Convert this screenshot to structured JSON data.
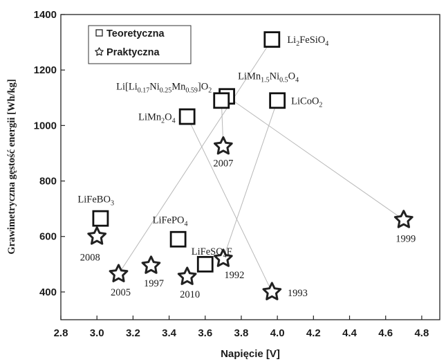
{
  "chart_data": {
    "type": "scatter",
    "xlabel": "Napięcie [V]",
    "ylabel": "Grawimetryczna gęstość energii [Wh/kg]",
    "xlim": [
      2.8,
      4.9
    ],
    "ylim": [
      300,
      1400
    ],
    "xticks": [
      "2.8",
      "3.0",
      "3.2",
      "3.4",
      "3.6",
      "3.8",
      "4.0",
      "4.2",
      "4.4",
      "4.6",
      "4.8"
    ],
    "yticks": [
      "400",
      "600",
      "800",
      "1000",
      "1200",
      "1400"
    ],
    "legend": {
      "position": "top-left",
      "entries": [
        "Teoretyczna",
        "Praktyczna"
      ]
    },
    "series": [
      {
        "name": "Teoretyczna",
        "marker": "square",
        "points": [
          {
            "x": 3.97,
            "y": 1310,
            "label": {
              "base": "Li",
              "parts": [
                [
                  "2",
                  "sub"
                ],
                [
                  "FeSiO",
                  ""
                ],
                [
                  "4",
                  "sub"
                ]
              ]
            }
          },
          {
            "x": 3.72,
            "y": 1105,
            "label": {
              "base": "LiMn",
              "parts": [
                [
                  "1.5",
                  "sub"
                ],
                [
                  "Ni",
                  ""
                ],
                [
                  "0.5",
                  "sub"
                ],
                [
                  "O",
                  ""
                ],
                [
                  "4",
                  "sub"
                ]
              ]
            }
          },
          {
            "x": 3.69,
            "y": 1090,
            "label": {
              "base": "Li[Li",
              "parts": [
                [
                  "0.17",
                  "sub"
                ],
                [
                  "Ni",
                  ""
                ],
                [
                  "0.25",
                  "sub"
                ],
                [
                  "Mn",
                  ""
                ],
                [
                  "0.59",
                  "sub"
                ],
                [
                  "]O",
                  ""
                ],
                [
                  "2",
                  "sub"
                ]
              ]
            }
          },
          {
            "x": 4.0,
            "y": 1090,
            "label": {
              "base": "LiCoO",
              "parts": [
                [
                  "2",
                  "sub"
                ]
              ]
            }
          },
          {
            "x": 3.5,
            "y": 1032,
            "label": {
              "base": "LiMn",
              "parts": [
                [
                  "2",
                  "sub"
                ],
                [
                  "O",
                  ""
                ],
                [
                  "4",
                  "sub"
                ]
              ]
            }
          },
          {
            "x": 3.02,
            "y": 665,
            "label": {
              "base": "LiFeBO",
              "parts": [
                [
                  "3",
                  "sub"
                ]
              ]
            }
          },
          {
            "x": 3.45,
            "y": 590,
            "label": {
              "base": "LiFePO",
              "parts": [
                [
                  "4",
                  "sub"
                ]
              ]
            }
          },
          {
            "x": 3.6,
            "y": 500,
            "label": {
              "base": "LiFeSO",
              "parts": [
                [
                  "4",
                  "sub"
                ],
                [
                  "F",
                  ""
                ]
              ]
            }
          }
        ]
      },
      {
        "name": "Praktyczna",
        "marker": "star",
        "points": [
          {
            "x": 3.7,
            "y": 925,
            "label": "2007"
          },
          {
            "x": 4.7,
            "y": 660,
            "label": "1999"
          },
          {
            "x": 3.0,
            "y": 600,
            "label": "2008"
          },
          {
            "x": 3.12,
            "y": 465,
            "label": "2005"
          },
          {
            "x": 3.3,
            "y": 495,
            "label": "1997"
          },
          {
            "x": 3.5,
            "y": 455,
            "label": "2010"
          },
          {
            "x": 3.7,
            "y": 520,
            "label": "1992"
          },
          {
            "x": 3.97,
            "y": 400,
            "label": "1993"
          }
        ]
      }
    ],
    "connections": [
      {
        "from": [
          3.97,
          1310
        ],
        "to": [
          3.12,
          465
        ]
      },
      {
        "from": [
          3.5,
          1032
        ],
        "to": [
          3.97,
          400
        ]
      },
      {
        "from": [
          4.0,
          1090
        ],
        "to": [
          3.7,
          520
        ]
      },
      {
        "from": [
          3.72,
          1105
        ],
        "to": [
          4.7,
          660
        ]
      },
      {
        "from": [
          3.69,
          1090
        ],
        "to": [
          3.7,
          925
        ]
      }
    ]
  }
}
